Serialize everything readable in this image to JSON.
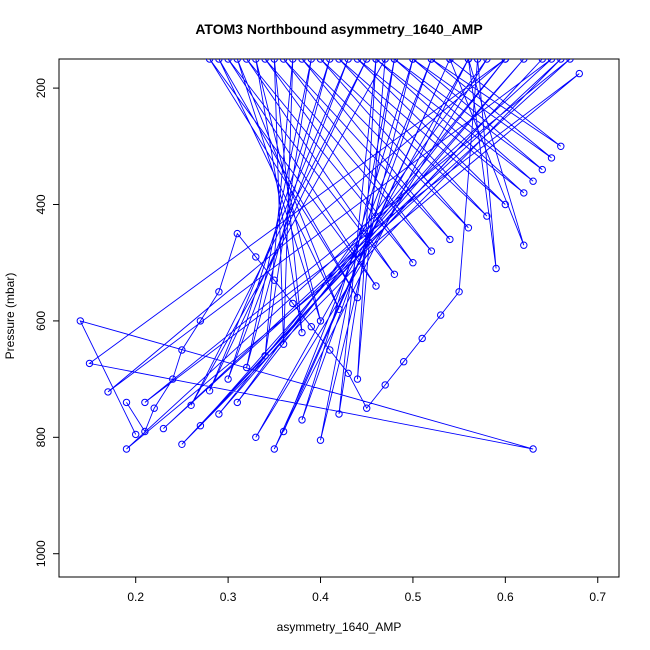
{
  "chart_data": {
    "type": "scatter",
    "title": "ATOM3 Northbound asymmetry_1640_AMP",
    "xlabel": "asymmetry_1640_AMP",
    "ylabel": "Pressure (mbar)",
    "xlim": [
      0.117,
      0.723
    ],
    "ylim": [
      1040,
      150
    ],
    "y_reversed": true,
    "grid": false,
    "legend": "none",
    "x_ticks": [
      0.2,
      0.3,
      0.4,
      0.5,
      0.6,
      0.7
    ],
    "x_tick_labels": [
      "0.2",
      "0.3",
      "0.4",
      "0.5",
      "0.6",
      "0.7"
    ],
    "y_ticks": [
      200,
      400,
      600,
      800,
      1000
    ],
    "y_tick_labels": [
      "200",
      "400",
      "600",
      "800",
      "1000"
    ],
    "series_color": "#0000ff",
    "series": [
      {
        "style": "lines+points",
        "x": [
          0.2,
          0.14,
          0.63,
          0.15,
          0.6,
          0.17,
          0.65,
          0.19,
          0.68,
          0.21,
          0.67,
          0.23,
          0.66,
          0.25,
          0.64,
          0.27,
          0.62,
          0.29,
          0.6,
          0.31,
          0.58,
          0.33,
          0.56,
          0.35,
          0.54,
          0.36,
          0.52,
          0.38,
          0.5,
          0.4,
          0.48,
          0.42,
          0.46,
          0.44,
          0.47,
          0.26,
          0.45,
          0.28,
          0.43,
          0.3,
          0.41,
          0.32,
          0.39,
          0.34,
          0.37,
          0.36,
          0.35,
          0.38,
          0.33,
          0.4,
          0.31,
          0.42,
          0.29,
          0.44,
          0.28,
          0.46,
          0.3,
          0.48,
          0.32,
          0.5,
          0.34,
          0.52,
          0.36,
          0.54,
          0.38,
          0.56,
          0.4,
          0.58,
          0.42,
          0.6,
          0.44,
          0.62,
          0.46,
          0.63,
          0.48,
          0.64,
          0.5,
          0.65,
          0.52,
          0.66,
          0.54,
          0.62,
          0.56,
          0.59,
          0.57,
          0.55,
          0.53,
          0.51,
          0.49,
          0.47,
          0.45,
          0.43,
          0.41,
          0.39,
          0.37,
          0.35,
          0.33,
          0.31,
          0.29,
          0.27,
          0.25,
          0.24,
          0.22,
          0.21,
          0.19
        ],
        "y": [
          795,
          600,
          820,
          673,
          150,
          722,
          150,
          820,
          175,
          740,
          150,
          785,
          150,
          812,
          150,
          780,
          150,
          760,
          150,
          740,
          150,
          800,
          150,
          820,
          150,
          790,
          150,
          770,
          150,
          805,
          150,
          760,
          150,
          700,
          150,
          745,
          150,
          720,
          150,
          700,
          150,
          680,
          150,
          660,
          150,
          640,
          150,
          620,
          150,
          600,
          150,
          580,
          150,
          560,
          150,
          540,
          150,
          520,
          150,
          500,
          150,
          480,
          150,
          460,
          150,
          440,
          150,
          420,
          150,
          400,
          150,
          380,
          150,
          360,
          150,
          340,
          150,
          320,
          150,
          300,
          150,
          470,
          150,
          510,
          150,
          550,
          590,
          630,
          670,
          710,
          750,
          690,
          650,
          610,
          570,
          530,
          490,
          450,
          550,
          600,
          650,
          700,
          750,
          790,
          740
        ]
      }
    ]
  }
}
